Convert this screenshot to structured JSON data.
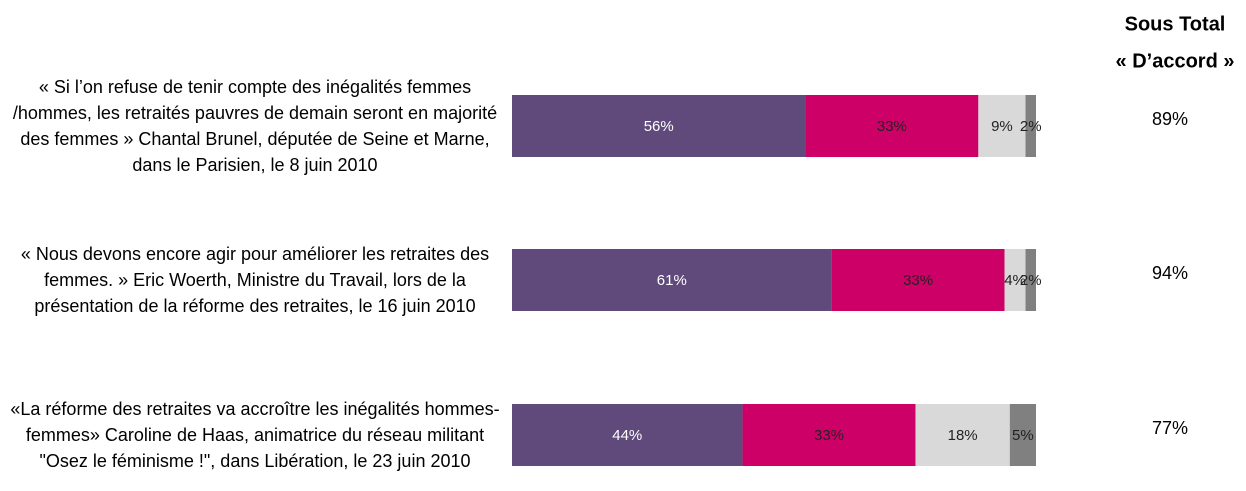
{
  "chart_data": {
    "type": "stacked-barh",
    "categories": [
      "« Si l’on refuse de tenir compte des inégalités femmes /hommes, les retraités pauvres de demain seront en majorité des femmes » Chantal Brunel, députée de Seine et Marne, dans le Parisien, le 8 juin 2010",
      "« Nous devons encore agir pour améliorer les retraites des femmes. » Eric Woerth, Ministre du Travail, lors de la présentation de la réforme des retraites, le 16 juin 2010",
      "«La réforme des retraites va accroître les inégalités hommes-femmes» Caroline de Haas, animatrice du réseau militant \"Osez le féminisme !\", dans Libération, le 23 juin 2010"
    ],
    "series": [
      {
        "color": "#5f4a7b",
        "values": [
          56,
          61,
          44
        ],
        "value_labels": [
          "56%",
          "61%",
          "44%"
        ]
      },
      {
        "color": "#cc0066",
        "values": [
          33,
          33,
          33
        ],
        "value_labels": [
          "33%",
          "33%",
          "33%"
        ]
      },
      {
        "color": "#d9d9d9",
        "values": [
          9,
          4,
          18
        ],
        "value_labels": [
          "9%",
          "4%",
          "18%"
        ]
      },
      {
        "color": "#808080",
        "values": [
          2,
          2,
          5
        ],
        "value_labels": [
          "2%",
          "2%",
          "5%"
        ]
      }
    ],
    "subtotal": {
      "title": [
        "Sous Total",
        "« D’accord »"
      ],
      "values": [
        89,
        94,
        77
      ],
      "value_labels": [
        "89%",
        "94%",
        "77%"
      ]
    }
  }
}
